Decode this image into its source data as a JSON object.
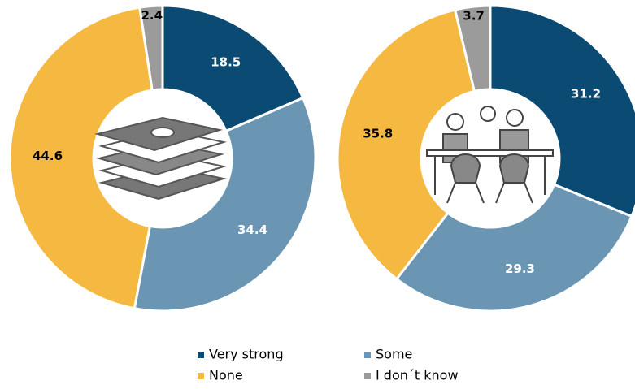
{
  "legend": {
    "labels": [
      "Very strong",
      "Some",
      "None",
      "I don´t know"
    ],
    "colors": [
      "#0b4a72",
      "#6a96b4",
      "#f5b942",
      "#9b9b9b"
    ],
    "text_colors": [
      "#ffffff",
      "#ffffff",
      "#000000",
      "#000000"
    ]
  },
  "chart_data": [
    {
      "type": "pie",
      "donut": true,
      "values": [
        18.5,
        34.4,
        44.6,
        2.4
      ]
    },
    {
      "type": "pie",
      "donut": true,
      "values": [
        31.2,
        29.3,
        35.8,
        3.7
      ]
    }
  ]
}
